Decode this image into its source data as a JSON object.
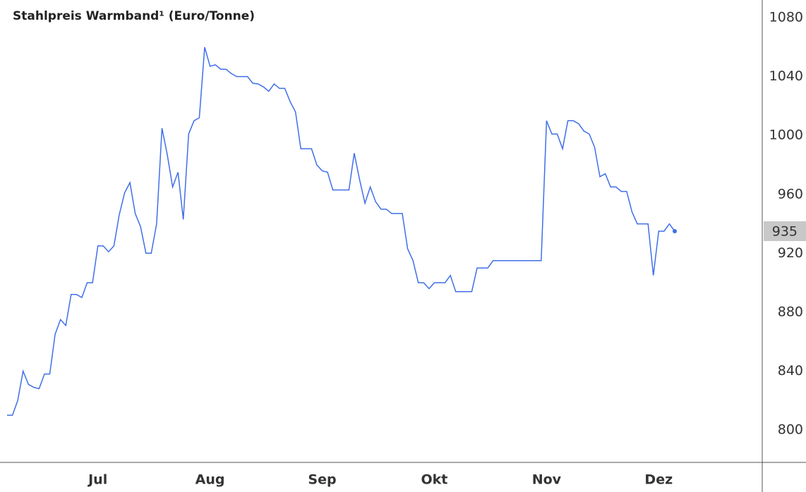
{
  "chart_data": {
    "type": "line",
    "title": "Stahlpreis Warmband¹ (Euro/Tonne)",
    "categories": [
      null,
      null,
      null,
      null,
      null,
      null,
      null,
      null,
      null,
      null,
      null,
      null,
      null,
      null,
      null,
      null,
      null,
      "Jul",
      null,
      null,
      null,
      null,
      null,
      null,
      null,
      null,
      null,
      null,
      null,
      null,
      null,
      null,
      null,
      null,
      null,
      null,
      null,
      null,
      "Aug",
      null,
      null,
      null,
      null,
      null,
      null,
      null,
      null,
      null,
      null,
      null,
      null,
      null,
      null,
      null,
      null,
      null,
      null,
      null,
      null,
      "Sep",
      null,
      null,
      null,
      null,
      null,
      null,
      null,
      null,
      null,
      null,
      null,
      null,
      null,
      null,
      null,
      null,
      null,
      null,
      null,
      null,
      "Okt",
      null,
      null,
      null,
      null,
      null,
      null,
      null,
      null,
      null,
      null,
      null,
      null,
      null,
      null,
      null,
      null,
      null,
      null,
      null,
      null,
      "Nov",
      null,
      null,
      null,
      null,
      null,
      null,
      null,
      null,
      null,
      null,
      null,
      null,
      null,
      null,
      null,
      null,
      null,
      null,
      null,
      null,
      "Dez",
      null,
      null,
      null
    ],
    "series": [
      {
        "name": "Stahlpreis Warmband",
        "color": "#3f6fe8",
        "values": [
          810,
          810,
          820,
          840,
          831,
          829,
          828,
          838,
          838,
          865,
          875,
          871,
          892,
          892,
          890,
          900,
          900,
          925,
          925,
          921,
          925,
          946,
          961,
          968,
          947,
          938,
          920,
          920,
          940,
          1005,
          987,
          965,
          975,
          943,
          1001,
          1010,
          1012,
          1060,
          1047,
          1048,
          1045,
          1045,
          1042,
          1040,
          1040,
          1040,
          1035.5,
          1035,
          1033,
          1030,
          1035,
          1032,
          1032,
          1023,
          1016,
          991,
          991,
          991,
          980,
          976,
          975,
          963,
          963,
          963,
          963,
          988,
          970,
          954,
          965,
          955,
          950,
          950,
          947,
          947,
          947,
          923,
          915,
          900,
          900,
          896,
          900,
          900,
          900,
          905,
          894,
          894,
          894,
          894,
          910,
          910,
          910,
          915,
          915,
          915,
          915,
          915,
          915,
          915,
          915,
          915,
          915,
          1010,
          1001,
          1001,
          991,
          1010,
          1010,
          1008,
          1003,
          1001,
          992,
          972,
          974,
          965,
          965,
          962,
          962,
          948,
          940,
          940,
          940,
          905,
          935,
          935,
          940,
          935
        ]
      }
    ],
    "ylim": [
      778,
      1092
    ],
    "yticks": [
      800,
      840,
      880,
      920,
      960,
      1000,
      1040,
      1080
    ],
    "grid": false
  }
}
